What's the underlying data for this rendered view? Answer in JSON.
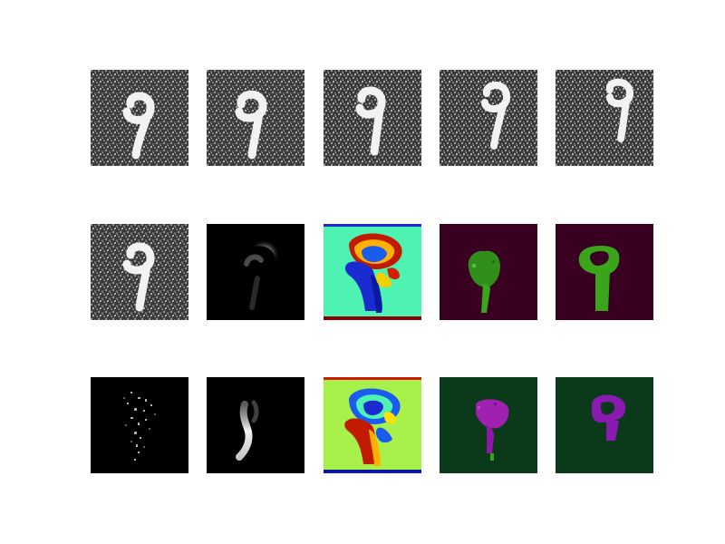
{
  "figure": {
    "background": "#ffffff",
    "rows": 3,
    "cols": 5,
    "panels": [
      {
        "id": "r1c1",
        "kind": "noisy-digit",
        "label": "9"
      },
      {
        "id": "r1c2",
        "kind": "noisy-digit",
        "label": "9"
      },
      {
        "id": "r1c3",
        "kind": "noisy-digit",
        "label": "9"
      },
      {
        "id": "r1c4",
        "kind": "noisy-digit",
        "label": "9"
      },
      {
        "id": "r1c5",
        "kind": "noisy-digit",
        "label": "9"
      },
      {
        "id": "r2c1",
        "kind": "noisy-digit",
        "label": "9"
      },
      {
        "id": "r2c2",
        "kind": "grayscale-attention"
      },
      {
        "id": "r2c3",
        "kind": "jet-colormap-map",
        "bg": "#4ef3b4"
      },
      {
        "id": "r2c4",
        "kind": "segmentation-mask",
        "bg": "#3a0022",
        "fg": "#2f8f1a"
      },
      {
        "id": "r2c5",
        "kind": "segmentation-mask",
        "bg": "#3a0022",
        "fg": "#3aa51a"
      },
      {
        "id": "r3c1",
        "kind": "grayscale-sparse"
      },
      {
        "id": "r3c2",
        "kind": "grayscale-attention"
      },
      {
        "id": "r3c3",
        "kind": "jet-colormap-map",
        "bg": "#a8f04a"
      },
      {
        "id": "r3c4",
        "kind": "segmentation-mask",
        "bg": "#0a3a1a",
        "fg": "#a020b0"
      },
      {
        "id": "r3c5",
        "kind": "segmentation-mask",
        "bg": "#0a3a1a",
        "fg": "#8a1ab0"
      }
    ]
  }
}
